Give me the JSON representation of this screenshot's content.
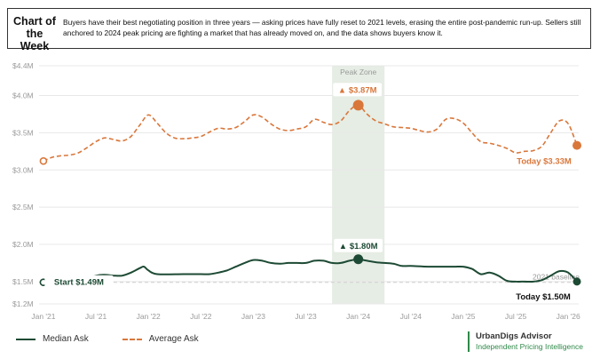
{
  "header": {
    "tag": "Chart of the Week",
    "description": "Buyers have their best negotiating position in three years — asking prices have fully reset to 2021 levels, erasing the entire post-pandemic run-up. Sellers still anchored to 2024 peak pricing are fighting a market that has already moved on, and the data shows buyers know it."
  },
  "legend": {
    "median_label": "Median Ask",
    "average_label": "Average Ask"
  },
  "brand": {
    "name": "UrbanDigs Advisor",
    "tagline": "Independent Pricing Intelligence"
  },
  "colors": {
    "median": "#1d4a34",
    "average": "#d9773b",
    "peak_zone": "#e6ede4",
    "grid": "#e8e8e8"
  },
  "chart_data": {
    "type": "line",
    "x_ticks": [
      {
        "label": "Jan '21",
        "t": 0
      },
      {
        "label": "Jul '21",
        "t": 6
      },
      {
        "label": "Jan '22",
        "t": 12
      },
      {
        "label": "Jul '22",
        "t": 18
      },
      {
        "label": "Jan '23",
        "t": 24
      },
      {
        "label": "Jul '23",
        "t": 30
      },
      {
        "label": "Jan '24",
        "t": 36
      },
      {
        "label": "Jul '24",
        "t": 42
      },
      {
        "label": "Jan '25",
        "t": 48
      },
      {
        "label": "Jul '25",
        "t": 54
      },
      {
        "label": "Jan '26",
        "t": 60
      }
    ],
    "x_range": [
      -0.5,
      61.2
    ],
    "y_range": [
      1.2,
      4.4
    ],
    "y_ticks": [
      {
        "label": "$1.2M",
        "v": 1.2
      },
      {
        "label": "$1.5M",
        "v": 1.5
      },
      {
        "label": "$2.0M",
        "v": 2.0
      },
      {
        "label": "$2.5M",
        "v": 2.5
      },
      {
        "label": "$3.0M",
        "v": 3.0
      },
      {
        "label": "$3.5M",
        "v": 3.5
      },
      {
        "label": "$4.0M",
        "v": 4.0
      },
      {
        "label": "$4.4M",
        "v": 4.4
      }
    ],
    "peak_zone": {
      "label": "Peak Zone",
      "t_start": 33,
      "t_end": 39
    },
    "baseline": {
      "label": "2021 baseline",
      "v": 1.49
    },
    "series": [
      {
        "name": "Average Ask",
        "style": "dashed",
        "points": [
          [
            0,
            3.12
          ],
          [
            1,
            3.17
          ],
          [
            2,
            3.19
          ],
          [
            3,
            3.2
          ],
          [
            4,
            3.23
          ],
          [
            5,
            3.3
          ],
          [
            6,
            3.38
          ],
          [
            7,
            3.43
          ],
          [
            8,
            3.41
          ],
          [
            9,
            3.39
          ],
          [
            10,
            3.45
          ],
          [
            11,
            3.6
          ],
          [
            12,
            3.74
          ],
          [
            13,
            3.63
          ],
          [
            14,
            3.5
          ],
          [
            15,
            3.43
          ],
          [
            16,
            3.42
          ],
          [
            17,
            3.43
          ],
          [
            18,
            3.45
          ],
          [
            19,
            3.51
          ],
          [
            20,
            3.56
          ],
          [
            21,
            3.55
          ],
          [
            22,
            3.57
          ],
          [
            23,
            3.65
          ],
          [
            24,
            3.74
          ],
          [
            25,
            3.71
          ],
          [
            26,
            3.62
          ],
          [
            27,
            3.55
          ],
          [
            28,
            3.53
          ],
          [
            29,
            3.55
          ],
          [
            30,
            3.58
          ],
          [
            31,
            3.68
          ],
          [
            32,
            3.64
          ],
          [
            33,
            3.61
          ],
          [
            34,
            3.66
          ],
          [
            35,
            3.8
          ],
          [
            36,
            3.87
          ],
          [
            37,
            3.75
          ],
          [
            38,
            3.66
          ],
          [
            39,
            3.62
          ],
          [
            40,
            3.58
          ],
          [
            41,
            3.57
          ],
          [
            42,
            3.56
          ],
          [
            43,
            3.53
          ],
          [
            44,
            3.51
          ],
          [
            45,
            3.55
          ],
          [
            46,
            3.68
          ],
          [
            47,
            3.69
          ],
          [
            48,
            3.63
          ],
          [
            49,
            3.5
          ],
          [
            50,
            3.38
          ],
          [
            51,
            3.36
          ],
          [
            52,
            3.33
          ],
          [
            53,
            3.29
          ],
          [
            54,
            3.23
          ],
          [
            55,
            3.25
          ],
          [
            56,
            3.26
          ],
          [
            57,
            3.32
          ],
          [
            58,
            3.5
          ],
          [
            59,
            3.66
          ],
          [
            60,
            3.62
          ],
          [
            61,
            3.33
          ]
        ],
        "start_value": 3.12,
        "peak": {
          "label": "▲ $3.87M",
          "t": 36,
          "v": 3.87
        },
        "end": {
          "label": "Today $3.33M",
          "t": 61,
          "v": 3.33
        }
      },
      {
        "name": "Median Ask",
        "style": "solid",
        "points": [
          [
            0,
            1.49
          ],
          [
            2,
            1.5
          ],
          [
            4,
            1.51
          ],
          [
            6,
            1.58
          ],
          [
            7,
            1.59
          ],
          [
            8,
            1.58
          ],
          [
            9,
            1.58
          ],
          [
            10,
            1.62
          ],
          [
            11,
            1.68
          ],
          [
            11.5,
            1.7
          ],
          [
            12,
            1.65
          ],
          [
            13,
            1.6
          ],
          [
            16,
            1.6
          ],
          [
            18,
            1.6
          ],
          [
            19,
            1.6
          ],
          [
            20,
            1.62
          ],
          [
            21,
            1.65
          ],
          [
            22,
            1.7
          ],
          [
            23,
            1.75
          ],
          [
            24,
            1.79
          ],
          [
            25,
            1.78
          ],
          [
            26,
            1.75
          ],
          [
            27,
            1.74
          ],
          [
            28,
            1.75
          ],
          [
            29,
            1.75
          ],
          [
            30,
            1.75
          ],
          [
            31,
            1.78
          ],
          [
            32,
            1.78
          ],
          [
            33,
            1.75
          ],
          [
            34,
            1.75
          ],
          [
            35,
            1.78
          ],
          [
            36,
            1.8
          ],
          [
            37,
            1.78
          ],
          [
            38,
            1.76
          ],
          [
            39,
            1.75
          ],
          [
            40,
            1.74
          ],
          [
            41,
            1.71
          ],
          [
            42,
            1.71
          ],
          [
            44,
            1.7
          ],
          [
            46,
            1.7
          ],
          [
            47,
            1.7
          ],
          [
            48,
            1.7
          ],
          [
            49,
            1.67
          ],
          [
            50,
            1.6
          ],
          [
            51,
            1.62
          ],
          [
            52,
            1.58
          ],
          [
            53,
            1.51
          ],
          [
            54,
            1.5
          ],
          [
            55,
            1.5
          ],
          [
            56,
            1.5
          ],
          [
            57,
            1.52
          ],
          [
            58,
            1.58
          ],
          [
            59,
            1.64
          ],
          [
            60,
            1.62
          ],
          [
            61,
            1.5
          ]
        ],
        "start": {
          "label": "Start $1.49M",
          "t": 0,
          "v": 1.49
        },
        "peak": {
          "label": "▲ $1.80M",
          "t": 36,
          "v": 1.8
        },
        "end": {
          "label": "Today $1.50M",
          "t": 61,
          "v": 1.5
        }
      }
    ]
  }
}
